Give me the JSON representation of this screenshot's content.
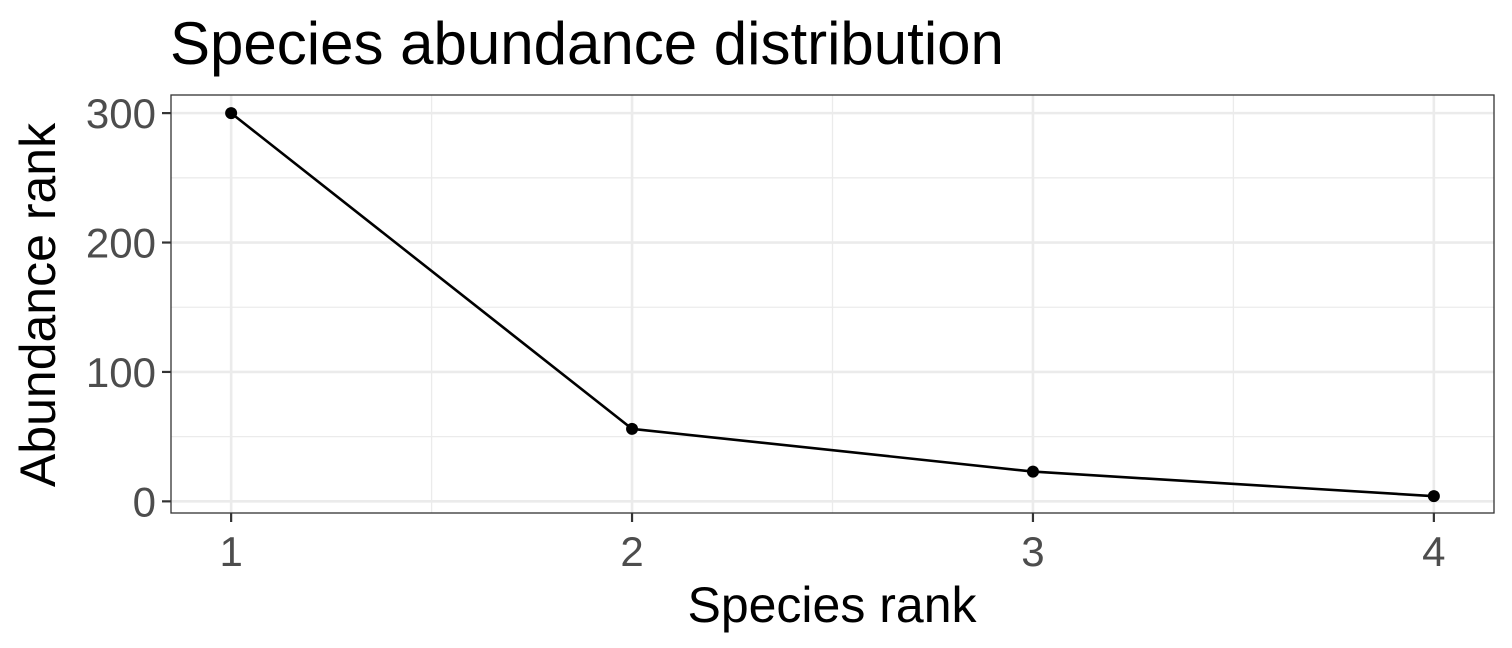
{
  "chart_data": {
    "type": "line",
    "title": "Species abundance distribution",
    "xlabel": "Species rank",
    "ylabel": "Abundance rank",
    "x": [
      1,
      2,
      3,
      4
    ],
    "series": [
      {
        "values": [
          300,
          56,
          23,
          4
        ],
        "color": "#000000"
      }
    ],
    "xlim": [
      0.85,
      4.15
    ],
    "ylim": [
      -9,
      314
    ],
    "x_ticks": [
      1,
      2,
      3,
      4
    ],
    "x_tick_labels": [
      "1",
      "2",
      "3",
      "4"
    ],
    "x_minor_ticks": [
      1.5,
      2.5,
      3.5
    ],
    "y_ticks": [
      0,
      100,
      200,
      300
    ],
    "y_tick_labels": [
      "0",
      "100",
      "200",
      "300"
    ],
    "y_minor_ticks": [
      50,
      150,
      250
    ],
    "grid": true,
    "legend": "none",
    "theme": {
      "background": "#ffffff",
      "grid_color": "#ebebeb",
      "border_color": "#333333",
      "tick_label_color": "#4d4d4d",
      "text_color": "#000000"
    }
  }
}
